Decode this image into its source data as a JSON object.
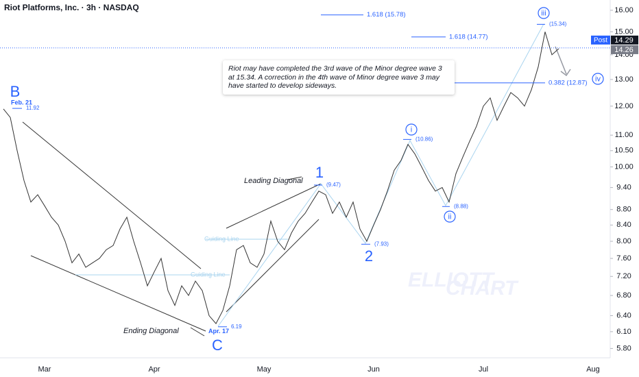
{
  "chart_data": {
    "type": "line",
    "title": "Riot Platforms, Inc. · 3h · NASDAQ",
    "color": "#333333",
    "log_scale": true,
    "categories": [
      null,
      null,
      null,
      null,
      null,
      null,
      "Mar",
      null,
      null,
      null,
      null,
      null,
      null,
      null,
      null,
      null,
      null,
      null,
      null,
      null,
      null,
      null,
      "Apr",
      null,
      null,
      null,
      null,
      null,
      null,
      null,
      null,
      null,
      null,
      null,
      null,
      null,
      null,
      null,
      "May",
      null,
      null,
      null,
      null,
      null,
      null,
      null,
      null,
      null,
      null,
      null,
      null,
      null,
      null,
      null,
      "Jun",
      null,
      null,
      null,
      null,
      null,
      null,
      null,
      null,
      null,
      null,
      null,
      null,
      null,
      null,
      null,
      "Jul",
      null,
      null,
      null,
      null,
      null,
      null,
      null,
      null,
      null,
      null,
      null,
      null,
      null,
      null,
      null,
      "Aug",
      null,
      null
    ],
    "values": [
      11.9,
      11.6,
      10.5,
      9.6,
      9.0,
      9.2,
      8.9,
      8.6,
      8.4,
      8.0,
      7.5,
      7.7,
      7.4,
      7.5,
      7.6,
      7.8,
      7.9,
      8.3,
      8.6,
      8.0,
      7.5,
      7.0,
      7.3,
      7.6,
      6.9,
      6.6,
      7.0,
      6.8,
      7.1,
      6.9,
      6.4,
      6.25,
      6.5,
      7.0,
      7.8,
      7.9,
      7.5,
      7.4,
      7.7,
      8.5,
      8.0,
      7.8,
      8.2,
      8.5,
      8.7,
      9.0,
      9.3,
      9.2,
      8.7,
      9.0,
      8.6,
      9.0,
      8.3,
      8.0,
      8.4,
      8.8,
      9.3,
      9.9,
      10.2,
      10.7,
      10.4,
      10.0,
      9.6,
      9.3,
      9.4,
      9.0,
      9.8,
      10.3,
      10.8,
      11.3,
      12.0,
      12.3,
      11.5,
      12.0,
      12.5,
      12.3,
      12.0,
      12.6,
      13.5,
      15.0,
      14.0,
      14.26,
      null,
      null,
      null,
      null,
      null,
      null,
      null
    ],
    "ylim": [
      5.64,
      16.5
    ],
    "yticks": [
      {
        "value": 16,
        "label": "16.00"
      },
      {
        "value": 15,
        "label": "15.00"
      },
      {
        "value": 14,
        "label": "14.00"
      },
      {
        "value": 13,
        "label": "13.00"
      },
      {
        "value": 12,
        "label": "12.00"
      },
      {
        "value": 11,
        "label": "11.00"
      },
      {
        "value": 10.5,
        "label": "10.50"
      },
      {
        "value": 10,
        "label": "10.00"
      },
      {
        "value": 9.4,
        "label": "9.40"
      },
      {
        "value": 8.8,
        "label": "8.80"
      },
      {
        "value": 8.4,
        "label": "8.40"
      },
      {
        "value": 8,
        "label": "8.00"
      },
      {
        "value": 7.6,
        "label": "7.60"
      },
      {
        "value": 7.2,
        "label": "7.20"
      },
      {
        "value": 6.8,
        "label": "6.80"
      },
      {
        "value": 6.4,
        "label": "6.40"
      },
      {
        "value": 6.1,
        "label": "6.10"
      },
      {
        "value": 5.8,
        "label": "5.80"
      }
    ],
    "last_price": {
      "label": "Post",
      "values": [
        14.29,
        14.26
      ]
    },
    "wave_labels": [
      "B",
      "C",
      "1",
      "2",
      "i",
      "ii",
      "iii",
      "iv"
    ],
    "pivots": {
      "values": [
        11.92,
        6.19,
        9.47,
        7.93,
        10.86,
        8.88,
        15.34
      ],
      "value_labels": [
        "11.92",
        "6.19",
        "(9.47)",
        "(7.93)",
        "(10.86)",
        "(8.88)",
        "(15.34)"
      ]
    },
    "pivot_dates": [
      "Feb. 21",
      "Apr. 17"
    ],
    "fib_levels": {
      "values": [
        15.78,
        14.77,
        12.87
      ],
      "value_labels": [
        "1.618 (15.78)",
        "1.618 (14.77)",
        "0.382 (12.87)"
      ]
    },
    "notes": [
      "Leading Diagonal",
      "Ending Diagonal",
      "Guiding Line",
      "Guiding Line"
    ],
    "comment": "Riot may have completed the 3rd wave of the Minor degree wave 3 at 15.34. A correction in the 4th wave of Minor degree wave 3 may have started to develop sideways.",
    "watermark": [
      "ELLIOTT",
      "CHART"
    ]
  }
}
